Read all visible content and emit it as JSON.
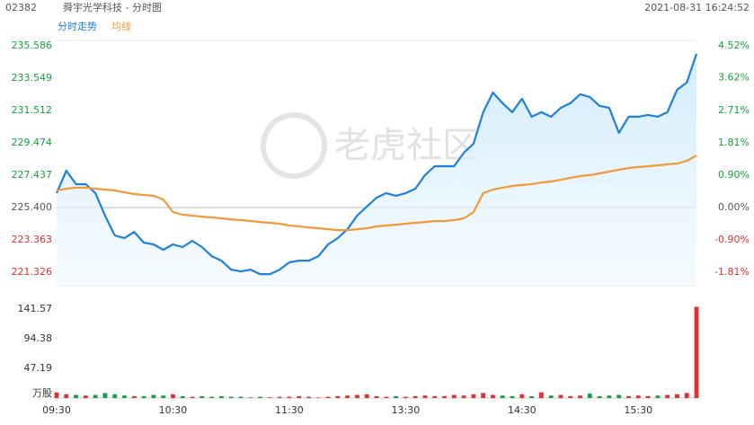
{
  "header": {
    "code": "02382",
    "name": "舜宇光学科技 - 分时图",
    "time": "2021-08-31 16:24:52",
    "tabs": [
      "分时走势",
      "均线"
    ],
    "watermark": "老虎社区"
  },
  "chart_data": {
    "type": "line",
    "series": [
      {
        "name": "分时走势",
        "color": "#1f7fe0",
        "values": [
          226.31,
          227.72,
          226.87,
          226.87,
          226.31,
          224.89,
          223.65,
          223.48,
          223.87,
          223.19,
          223.08,
          222.74,
          223.08,
          222.91,
          223.31,
          222.91,
          222.34,
          222.06,
          221.49,
          221.38,
          221.49,
          221.21,
          221.21,
          221.49,
          221.95,
          222.06,
          222.06,
          222.34,
          223.08,
          223.48,
          224.04,
          224.89,
          225.46,
          226.02,
          226.31,
          226.14,
          226.31,
          226.59,
          227.44,
          228.0,
          228.0,
          228.0,
          228.85,
          229.42,
          231.4,
          232.64,
          231.97,
          231.4,
          232.25,
          231.12,
          231.4,
          231.12,
          231.68,
          231.97,
          232.53,
          232.36,
          231.8,
          231.68,
          230.1,
          231.12,
          231.12,
          231.23,
          231.12,
          231.4,
          232.81,
          233.27,
          235.08
        ]
      },
      {
        "name": "均线",
        "color": "#f29a38",
        "values": [
          226.48,
          226.59,
          226.65,
          226.65,
          226.59,
          226.53,
          226.48,
          226.36,
          226.25,
          226.19,
          226.14,
          225.91,
          225.12,
          224.95,
          224.89,
          224.83,
          224.78,
          224.72,
          224.66,
          224.61,
          224.55,
          224.49,
          224.44,
          224.38,
          224.27,
          224.21,
          224.15,
          224.1,
          224.04,
          223.98,
          223.98,
          224.04,
          224.1,
          224.21,
          224.27,
          224.32,
          224.38,
          224.44,
          224.49,
          224.55,
          224.55,
          224.61,
          224.72,
          225.12,
          226.31,
          226.53,
          226.65,
          226.76,
          226.82,
          226.87,
          226.98,
          227.04,
          227.15,
          227.27,
          227.38,
          227.44,
          227.55,
          227.66,
          227.78,
          227.89,
          227.95,
          228.0,
          228.06,
          228.12,
          228.17,
          228.34,
          228.68
        ]
      }
    ],
    "ylim": [
      220.48,
      235.92
    ],
    "yticks": [
      235.586,
      233.549,
      231.512,
      229.474,
      227.437,
      {
        "value": 225.4,
        "label": "225.400"
      },
      223.363,
      221.326
    ],
    "y2lim": [
      -2.183,
      4.667
    ],
    "y2ticks": [
      {
        "value": 4.52,
        "label": "4.52%"
      },
      {
        "value": 3.62,
        "label": "3.62%"
      },
      {
        "value": 2.71,
        "label": "2.71%"
      },
      {
        "value": 1.81,
        "label": "1.81%"
      },
      {
        "value": 0.9,
        "label": "0.90%"
      },
      {
        "value": 0,
        "label": "0.00%"
      },
      {
        "value": -0.9,
        "label": "-0.90%"
      },
      {
        "value": -1.81,
        "label": "-1.81%"
      }
    ],
    "xticks": [
      {
        "value": 0,
        "label": "09:30"
      },
      {
        "value": 12,
        "label": "10:30"
      },
      {
        "value": 24,
        "label": "11:30"
      },
      {
        "value": 36,
        "label": "13:30"
      },
      {
        "value": 48,
        "label": "14:30"
      },
      {
        "value": 60,
        "label": "15:30"
      }
    ],
    "volume": {
      "values": [
        9,
        6,
        5,
        4,
        5,
        8,
        6,
        4,
        3,
        3,
        5,
        4,
        6,
        3,
        2,
        3,
        2,
        3,
        2,
        2,
        1,
        2,
        1,
        2,
        2,
        3,
        2,
        1,
        2,
        3,
        4,
        5,
        6,
        3,
        2,
        3,
        2,
        3,
        4,
        3,
        3,
        5,
        4,
        6,
        8,
        5,
        4,
        3,
        6,
        3,
        9,
        4,
        5,
        3,
        4,
        7,
        3,
        4,
        5,
        3,
        4,
        3,
        4,
        5,
        6,
        8,
        145
      ],
      "ylim": [
        0,
        150
      ],
      "yticks": [
        141.57,
        94.38,
        47.19,
        {
          "value": 0,
          "label": "万股"
        }
      ],
      "up_color": "#e03030",
      "down_color": "#18a040"
    }
  }
}
